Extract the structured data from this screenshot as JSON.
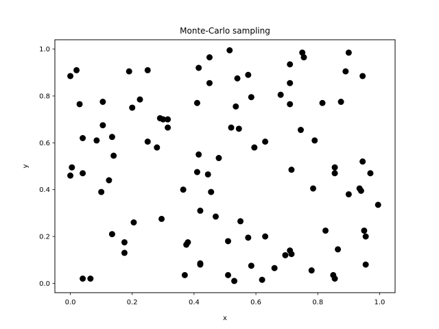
{
  "chart_data": {
    "type": "scatter",
    "title": "Monte-Carlo sampling",
    "xlabel": "x",
    "ylabel": "y",
    "xlim": [
      -0.05,
      1.05
    ],
    "ylim": [
      -0.04,
      1.04
    ],
    "xticks": [
      "0.0",
      "0.2",
      "0.4",
      "0.6",
      "0.8",
      "1.0"
    ],
    "yticks": [
      "0.0",
      "0.2",
      "0.4",
      "0.6",
      "0.8",
      "1.0"
    ],
    "grid": false,
    "marker_color": "#000000",
    "points": [
      [
        0.0,
        0.885
      ],
      [
        0.02,
        0.91
      ],
      [
        0.03,
        0.765
      ],
      [
        0.04,
        0.62
      ],
      [
        0.04,
        0.47
      ],
      [
        0.005,
        0.495
      ],
      [
        0.0,
        0.46
      ],
      [
        0.04,
        0.02
      ],
      [
        0.065,
        0.02
      ],
      [
        0.085,
        0.61
      ],
      [
        0.105,
        0.775
      ],
      [
        0.105,
        0.675
      ],
      [
        0.1,
        0.39
      ],
      [
        0.125,
        0.44
      ],
      [
        0.135,
        0.625
      ],
      [
        0.14,
        0.545
      ],
      [
        0.135,
        0.21
      ],
      [
        0.175,
        0.175
      ],
      [
        0.175,
        0.13
      ],
      [
        0.19,
        0.905
      ],
      [
        0.2,
        0.75
      ],
      [
        0.225,
        0.785
      ],
      [
        0.205,
        0.26
      ],
      [
        0.25,
        0.91
      ],
      [
        0.25,
        0.605
      ],
      [
        0.28,
        0.58
      ],
      [
        0.29,
        0.705
      ],
      [
        0.3,
        0.7
      ],
      [
        0.315,
        0.7
      ],
      [
        0.315,
        0.665
      ],
      [
        0.295,
        0.275
      ],
      [
        0.365,
        0.4
      ],
      [
        0.375,
        0.165
      ],
      [
        0.38,
        0.175
      ],
      [
        0.37,
        0.035
      ],
      [
        0.415,
        0.92
      ],
      [
        0.41,
        0.77
      ],
      [
        0.41,
        0.475
      ],
      [
        0.415,
        0.55
      ],
      [
        0.42,
        0.31
      ],
      [
        0.42,
        0.085
      ],
      [
        0.42,
        0.08
      ],
      [
        0.45,
        0.965
      ],
      [
        0.45,
        0.855
      ],
      [
        0.445,
        0.465
      ],
      [
        0.455,
        0.39
      ],
      [
        0.47,
        0.285
      ],
      [
        0.48,
        0.535
      ],
      [
        0.515,
        0.995
      ],
      [
        0.52,
        0.665
      ],
      [
        0.535,
        0.755
      ],
      [
        0.54,
        0.875
      ],
      [
        0.545,
        0.66
      ],
      [
        0.55,
        0.265
      ],
      [
        0.51,
        0.18
      ],
      [
        0.51,
        0.035
      ],
      [
        0.53,
        0.01
      ],
      [
        0.575,
        0.89
      ],
      [
        0.585,
        0.795
      ],
      [
        0.595,
        0.58
      ],
      [
        0.575,
        0.195
      ],
      [
        0.585,
        0.075
      ],
      [
        0.63,
        0.605
      ],
      [
        0.63,
        0.2
      ],
      [
        0.62,
        0.015
      ],
      [
        0.66,
        0.065
      ],
      [
        0.68,
        0.805
      ],
      [
        0.71,
        0.935
      ],
      [
        0.71,
        0.855
      ],
      [
        0.71,
        0.765
      ],
      [
        0.715,
        0.485
      ],
      [
        0.695,
        0.12
      ],
      [
        0.71,
        0.14
      ],
      [
        0.715,
        0.125
      ],
      [
        0.745,
        0.655
      ],
      [
        0.75,
        0.985
      ],
      [
        0.755,
        0.965
      ],
      [
        0.79,
        0.61
      ],
      [
        0.785,
        0.405
      ],
      [
        0.78,
        0.055
      ],
      [
        0.815,
        0.77
      ],
      [
        0.825,
        0.225
      ],
      [
        0.85,
        0.035
      ],
      [
        0.855,
        0.02
      ],
      [
        0.855,
        0.495
      ],
      [
        0.855,
        0.47
      ],
      [
        0.865,
        0.145
      ],
      [
        0.875,
        0.775
      ],
      [
        0.89,
        0.905
      ],
      [
        0.9,
        0.985
      ],
      [
        0.9,
        0.38
      ],
      [
        0.935,
        0.405
      ],
      [
        0.94,
        0.395
      ],
      [
        0.945,
        0.885
      ],
      [
        0.945,
        0.52
      ],
      [
        0.95,
        0.225
      ],
      [
        0.955,
        0.2
      ],
      [
        0.955,
        0.08
      ],
      [
        0.97,
        0.47
      ],
      [
        0.995,
        0.335
      ]
    ]
  }
}
